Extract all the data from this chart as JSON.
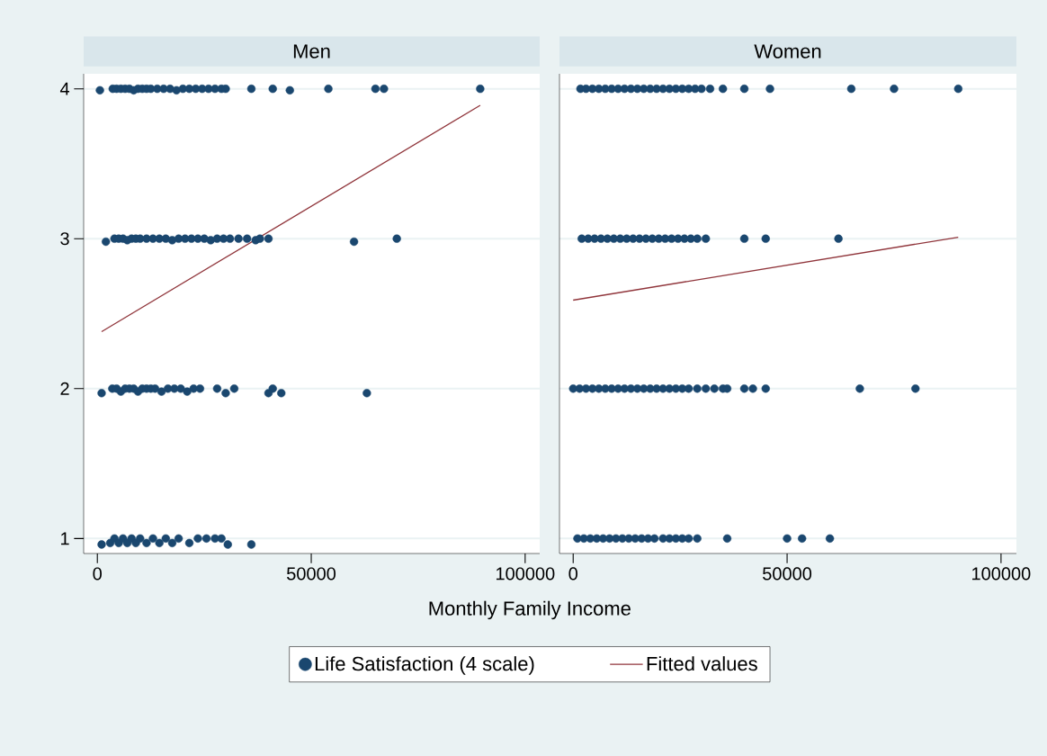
{
  "chart_data": [
    {
      "type": "scatter",
      "title": "Men",
      "xlabel": "Monthly Family Income",
      "xlim": [
        -3200,
        103400
      ],
      "ylim": [
        0.9,
        4.1
      ],
      "xticks": [
        0,
        50000,
        100000
      ],
      "yticks": [
        1,
        2,
        3,
        4
      ],
      "grid": "y",
      "legend": "bottom",
      "series": [
        {
          "name": "Life Satisfaction (4 scale)",
          "color": "#1a476f",
          "marker": "circle",
          "x": [
            600,
            3600,
            4500,
            5500,
            6500,
            7500,
            8500,
            9500,
            10500,
            11500,
            12500,
            14000,
            15500,
            17000,
            18500,
            20000,
            21500,
            23000,
            24500,
            26000,
            27500,
            29000,
            30000,
            36000,
            41000,
            45000,
            54000,
            65000,
            67000,
            89500,
            2000,
            4000,
            5000,
            6000,
            7000,
            8000,
            9000,
            10000,
            11500,
            13000,
            14500,
            16000,
            17500,
            19000,
            20500,
            22000,
            23500,
            25000,
            26500,
            28000,
            29500,
            31000,
            33000,
            35000,
            37000,
            38000,
            40000,
            60000,
            70000,
            1000,
            3500,
            4500,
            5500,
            6500,
            7500,
            8500,
            9500,
            10500,
            11500,
            12500,
            13500,
            15000,
            16500,
            18000,
            19500,
            21000,
            22500,
            24000,
            28000,
            30000,
            32000,
            40000,
            41000,
            43000,
            63000,
            1000,
            3000,
            4000,
            5000,
            6000,
            7000,
            8000,
            9000,
            10000,
            11500,
            13000,
            14500,
            16000,
            17500,
            19000,
            21500,
            23500,
            25500,
            27500,
            29000,
            30500,
            36000
          ],
          "values": [
            3.99,
            4,
            4,
            4,
            4,
            4,
            3.99,
            4,
            4,
            4,
            4,
            4,
            4,
            4,
            3.99,
            4,
            4,
            4,
            4,
            4,
            4,
            4,
            4,
            4,
            4,
            3.99,
            4,
            4,
            4,
            4,
            2.98,
            3,
            3,
            3,
            2.99,
            3,
            3,
            3,
            3,
            3,
            3,
            3,
            2.99,
            3,
            3,
            3,
            3,
            3,
            2.99,
            3,
            3,
            3,
            3,
            3,
            2.99,
            3,
            3,
            2.98,
            3,
            1.97,
            2,
            2,
            1.98,
            2,
            2,
            2,
            1.98,
            2,
            2,
            2,
            2,
            1.98,
            2,
            2,
            2,
            1.98,
            2,
            2,
            2,
            1.97,
            2,
            1.97,
            2,
            1.97,
            1.97,
            0.96,
            0.97,
            1,
            0.97,
            1,
            0.97,
            1,
            0.97,
            1,
            0.97,
            1,
            0.97,
            1,
            0.97,
            1,
            0.97,
            1,
            1,
            1,
            1,
            0.96,
            0.96
          ]
        },
        {
          "type": "line",
          "name": "Fitted values",
          "color": "#90353b",
          "marker": "none",
          "x": [
            1000,
            89500
          ],
          "values": [
            2.38,
            3.89
          ]
        }
      ]
    },
    {
      "type": "scatter",
      "title": "Women",
      "xlim": [
        -3200,
        103600
      ],
      "ylim": [
        0.9,
        4.1
      ],
      "xticks": [
        0,
        50000,
        100000
      ],
      "yticks": [
        1,
        2,
        3,
        4
      ],
      "grid": "y",
      "tick_labels": "x",
      "series": [
        {
          "color": "#1a476f",
          "marker": "circle",
          "x": [
            1700,
            3000,
            4500,
            6000,
            7500,
            9000,
            10500,
            12000,
            13500,
            15000,
            16500,
            18000,
            19500,
            21000,
            22500,
            24000,
            25500,
            27000,
            28500,
            30000,
            32000,
            35000,
            40000,
            46000,
            65000,
            75000,
            90000,
            2000,
            3500,
            5000,
            6500,
            8000,
            9500,
            11000,
            12500,
            14000,
            15500,
            17000,
            18500,
            20000,
            21500,
            23000,
            24500,
            26000,
            27500,
            29000,
            31000,
            40000,
            45000,
            62000,
            0,
            1500,
            3000,
            4500,
            6000,
            7500,
            9000,
            10500,
            12000,
            13500,
            15000,
            16500,
            18000,
            19500,
            21000,
            22500,
            24000,
            25500,
            27000,
            29000,
            31000,
            33000,
            35000,
            36000,
            40000,
            42000,
            45000,
            67000,
            80000,
            1000,
            2500,
            4000,
            5500,
            7000,
            8500,
            10000,
            11500,
            13000,
            14500,
            16000,
            17500,
            19000,
            21000,
            22500,
            24000,
            25500,
            27000,
            29000,
            36000,
            50000,
            53500,
            60000
          ],
          "values": [
            4,
            4,
            4,
            4,
            4,
            4,
            4,
            4,
            4,
            4,
            4,
            4,
            4,
            4,
            4,
            4,
            4,
            4,
            4,
            4,
            4,
            4,
            4,
            4,
            4,
            4,
            4,
            3,
            3,
            3,
            3,
            3,
            3,
            3,
            3,
            3,
            3,
            3,
            3,
            3,
            3,
            3,
            3,
            3,
            3,
            3,
            3,
            3,
            3,
            3,
            2,
            2,
            2,
            2,
            2,
            2,
            2,
            2,
            2,
            2,
            2,
            2,
            2,
            2,
            2,
            2,
            2,
            2,
            2,
            2,
            2,
            2,
            2,
            2,
            2,
            2,
            2,
            2,
            2,
            1,
            1,
            1,
            1,
            1,
            1,
            1,
            1,
            1,
            1,
            1,
            1,
            1,
            1,
            1,
            1,
            1,
            1,
            1,
            1,
            1,
            1,
            1
          ]
        },
        {
          "type": "line",
          "color": "#90353b",
          "marker": "none",
          "x": [
            0,
            90000
          ],
          "values": [
            2.59,
            3.01
          ]
        }
      ]
    }
  ]
}
